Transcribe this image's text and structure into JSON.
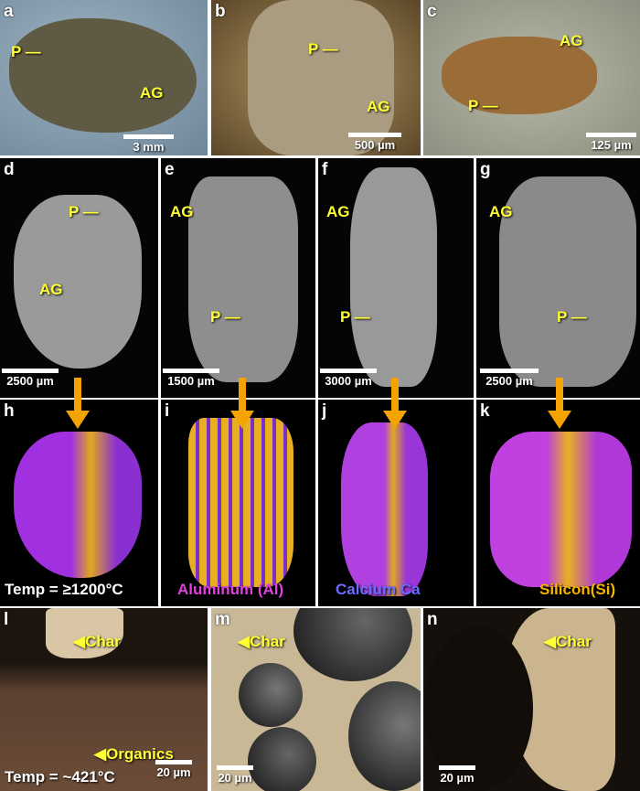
{
  "panels": [
    {
      "id": "a",
      "letter": "a",
      "annotations": [
        "P —",
        "AG"
      ],
      "scale_bar": "3 mm"
    },
    {
      "id": "b",
      "letter": "b",
      "annotations": [
        "P —",
        "AG"
      ],
      "scale_bar": "500 µm"
    },
    {
      "id": "c",
      "letter": "c",
      "annotations": [
        "AG",
        "P —"
      ],
      "scale_bar": "125 µm"
    },
    {
      "id": "d",
      "letter": "d",
      "annotations": [
        "P —",
        "AG"
      ],
      "scale_bar": "2500 µm"
    },
    {
      "id": "e",
      "letter": "e",
      "annotations": [
        "AG",
        "P —"
      ],
      "scale_bar": "1500 µm"
    },
    {
      "id": "f",
      "letter": "f",
      "annotations": [
        "AG",
        "P —"
      ],
      "scale_bar": "3000 µm"
    },
    {
      "id": "g",
      "letter": "g",
      "annotations": [
        "AG",
        "P —"
      ],
      "scale_bar": "2500 µm"
    },
    {
      "id": "h",
      "letter": "h",
      "caption": "Temp = ≥1200°C",
      "caption_color": "#ffffff"
    },
    {
      "id": "i",
      "letter": "i",
      "caption": "Aluminum (Al)",
      "caption_color": "#e040e0"
    },
    {
      "id": "j",
      "letter": "j",
      "caption": "Calcium Ca",
      "caption_color": "#6a6cff"
    },
    {
      "id": "k",
      "letter": "k",
      "caption": "Silicon(Si)",
      "caption_color": "#f5b400"
    },
    {
      "id": "l",
      "letter": "l",
      "annotations": [
        "◀Char",
        "◀Organics"
      ],
      "caption": "Temp = ~421°C",
      "caption_color": "#ffffff",
      "scale_bar": "20 µm"
    },
    {
      "id": "m",
      "letter": "m",
      "annotations": [
        "◀Char"
      ],
      "scale_bar": "20 µm"
    },
    {
      "id": "n",
      "letter": "n",
      "annotations": [
        "◀Char"
      ],
      "scale_bar": "20 µm"
    }
  ],
  "colors": {
    "annotation": "#ffff33",
    "arrow": "#f5a300",
    "eds_magenta": "#c030e0",
    "eds_yellow": "#f0b020"
  }
}
